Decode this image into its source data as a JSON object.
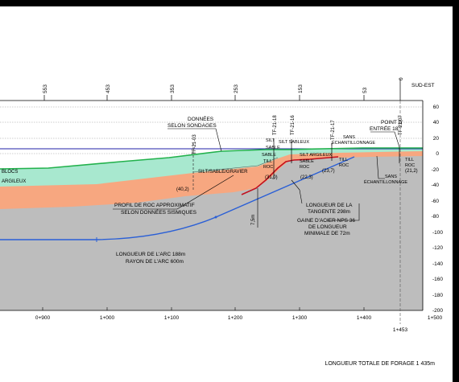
{
  "header": {
    "top_stations": [
      "553",
      "453",
      "353",
      "253",
      "153",
      "53",
      "0"
    ],
    "direction": "SUD-EST"
  },
  "elevation_ticks": [
    "60",
    "40",
    "20",
    "0",
    "-20",
    "-40",
    "-60",
    "-80",
    "-100",
    "-120",
    "-140",
    "-160",
    "-180",
    "-200"
  ],
  "chainage_ticks": [
    "0+900",
    "1+000",
    "1+100",
    "1+200",
    "1+300",
    "1+400",
    "1+500"
  ],
  "end_chainage": "1+453",
  "layers": {
    "blocs": "BLOCS",
    "argileux": "ARGILEUX",
    "silt_sable_gravier": "SILT/SABLE/GRAVIER"
  },
  "boreholes": [
    {
      "id": "TF-21-18",
      "logs": [
        "SILT",
        "SABLE",
        "SABLE",
        "TILL",
        "ROC"
      ]
    },
    {
      "id": "TF-21-16",
      "logs": [
        "SILT SABLEUX",
        "SILT ARGILEUX",
        "SABLE",
        "ROC"
      ]
    },
    {
      "id": "TF-21-17",
      "logs": [
        "TILL",
        "ROC"
      ]
    },
    {
      "id": "TF-21-07",
      "logs": [
        "TILL",
        "ROC"
      ]
    },
    {
      "id": "TF-21-03",
      "logs": []
    }
  ],
  "depths": [
    "(40,2)",
    "(31,0)",
    "(22,3)",
    "(23,7)",
    "(21,2)"
  ],
  "annotations": {
    "donnees_line1": "DONNÉES",
    "donnees_line2": "SELON SONDAGES",
    "entry_line1": "POINT D'",
    "entry_line2": "ENTRÉE 18°",
    "sans_ech_top": "SANS",
    "sans_ech_top2": "ÉCHANTILLONNAGE",
    "sans_ech_right": "SANS",
    "sans_ech_right2": "ÉCHANTILLONNAGE",
    "profil_line1": "PROFIL DE ROC APPROXIMATIF",
    "profil_line2": "SELON DONNÉES SISMIQUES",
    "tangent_line1": "LONGUEUR DE LA",
    "tangent_line2": "TANGENTE 298m",
    "gaine_line1": "GAINE D'ACIER NPS 36",
    "gaine_line2": "DE LONGUEUR",
    "gaine_line3": "MINIMALE DE 72m",
    "arc_line1": "LONGUEUR DE L'ARC 188m",
    "arc_line2": "RAYON DE L'ARC 600m",
    "dim_label": "7,5m"
  },
  "footer": {
    "total": "LONGUEUR TOTALE DE FORAGE 1 435m"
  },
  "colors": {
    "sediment": "#a8e8cf",
    "ground_line": "#22b14c",
    "till": "#f7a780",
    "rock": "#bdbdbd",
    "water_line": "#2222aa",
    "bore_path": "#2a5fd6",
    "rock_profile": "#c2101e"
  }
}
